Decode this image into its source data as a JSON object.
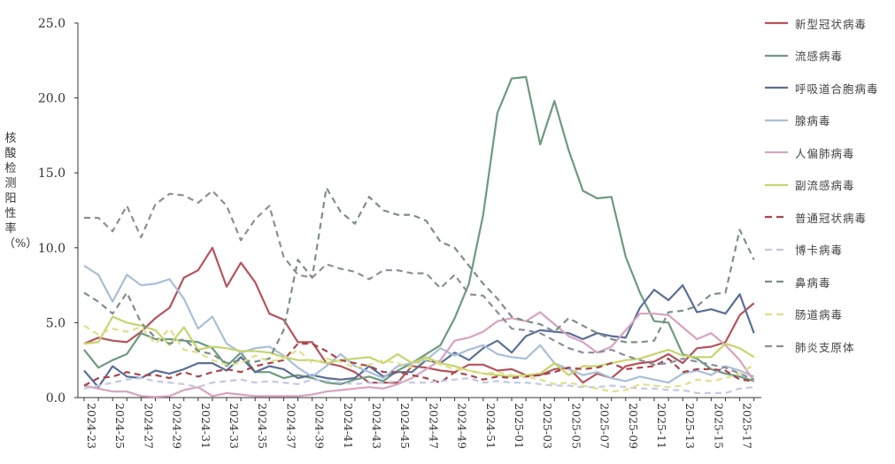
{
  "chart_data": {
    "type": "line",
    "title": "",
    "xlabel": "",
    "ylabel": "核酸检测阳性率（%）",
    "ylim": [
      0,
      25
    ],
    "yticks": [
      "0.0",
      "5.0",
      "10.0",
      "15.0",
      "20.0",
      "25.0"
    ],
    "grid": false,
    "legend_position": "right",
    "x": [
      "2024-23",
      "2024-24",
      "2024-25",
      "2024-26",
      "2024-27",
      "2024-28",
      "2024-29",
      "2024-30",
      "2024-31",
      "2024-32",
      "2024-33",
      "2024-34",
      "2024-35",
      "2024-36",
      "2024-37",
      "2024-38",
      "2024-39",
      "2024-40",
      "2024-41",
      "2024-42",
      "2024-43",
      "2024-44",
      "2024-45",
      "2024-46",
      "2024-47",
      "2024-48",
      "2024-49",
      "2024-50",
      "2024-51",
      "2024-52",
      "2025-01",
      "2025-02",
      "2025-03",
      "2025-04",
      "2025-05",
      "2025-06",
      "2025-07",
      "2025-08",
      "2025-09",
      "2025-10",
      "2025-11",
      "2025-12",
      "2025-13",
      "2025-14",
      "2025-15",
      "2025-16",
      "2025-17",
      "2025-18"
    ],
    "x_tick_labels": [
      "2024-23",
      "2024-25",
      "2024-27",
      "2024-29",
      "2024-31",
      "2024-33",
      "2024-35",
      "2024-37",
      "2024-39",
      "2024-41",
      "2024-43",
      "2024-45",
      "2024-47",
      "2024-49",
      "2024-51",
      "2025-01",
      "2025-03",
      "2025-05",
      "2025-07",
      "2025-09",
      "2025-11",
      "2025-13",
      "2025-15",
      "2025-17"
    ],
    "series": [
      {
        "name": "新型冠状病毒",
        "color": "#b5545c",
        "dash": false,
        "values": [
          3.6,
          4.0,
          3.8,
          3.7,
          4.4,
          5.3,
          6.0,
          8.0,
          8.5,
          10.0,
          7.4,
          9.0,
          7.7,
          5.6,
          5.2,
          3.7,
          3.7,
          2.3,
          2.1,
          1.7,
          1.0,
          1.0,
          1.0,
          2.1,
          2.0,
          1.8,
          1.7,
          2.2,
          2.2,
          1.8,
          1.9,
          1.5,
          1.5,
          1.9,
          2.0,
          1.0,
          1.6,
          1.3,
          2.1,
          2.3,
          2.4,
          2.9,
          2.3,
          3.3,
          3.4,
          3.7,
          5.5,
          6.3
        ]
      },
      {
        "name": "流感病毒",
        "color": "#6e9a80",
        "dash": false,
        "values": [
          3.2,
          2.0,
          2.5,
          2.9,
          4.3,
          3.9,
          3.9,
          3.8,
          3.7,
          3.3,
          2.1,
          3.0,
          1.7,
          1.7,
          1.3,
          1.5,
          1.3,
          1.0,
          0.9,
          1.2,
          1.4,
          1.1,
          1.8,
          2.3,
          2.9,
          3.5,
          5.3,
          7.6,
          12.2,
          19.0,
          21.3,
          21.4,
          16.9,
          19.8,
          16.5,
          13.8,
          13.3,
          13.4,
          9.4,
          7.0,
          5.1,
          5.0,
          2.9,
          2.6,
          1.9,
          1.6,
          1.4,
          1.1
        ]
      },
      {
        "name": "呼吸道合胞病毒",
        "color": "#5a6f96",
        "dash": false,
        "values": [
          1.8,
          0.7,
          2.1,
          1.4,
          1.3,
          1.8,
          1.6,
          1.9,
          2.3,
          2.3,
          1.8,
          2.7,
          1.7,
          2.1,
          1.9,
          1.3,
          1.5,
          1.3,
          1.2,
          1.3,
          2.1,
          1.4,
          1.7,
          1.7,
          2.5,
          2.3,
          3.0,
          2.5,
          3.3,
          3.8,
          3.0,
          4.1,
          4.5,
          4.4,
          4.3,
          3.9,
          4.3,
          4.1,
          4.0,
          6.0,
          7.2,
          6.5,
          7.5,
          5.7,
          5.9,
          5.6,
          6.9,
          4.3
        ]
      },
      {
        "name": "腺病毒",
        "color": "#a9bfd8",
        "dash": false,
        "values": [
          8.8,
          8.2,
          6.4,
          8.2,
          7.5,
          7.6,
          7.9,
          6.6,
          4.6,
          5.4,
          3.6,
          3.0,
          3.3,
          3.4,
          2.8,
          2.0,
          1.4,
          2.1,
          2.9,
          2.1,
          1.7,
          1.3,
          2.1,
          2.3,
          2.5,
          3.3,
          2.8,
          3.2,
          3.5,
          2.9,
          2.7,
          2.6,
          3.5,
          2.3,
          1.9,
          1.5,
          1.7,
          1.3,
          1.1,
          1.4,
          1.2,
          1.0,
          1.6,
          1.8,
          1.5,
          2.1,
          1.8,
          1.4
        ]
      },
      {
        "name": "人偏肺病毒",
        "color": "#d7a3bf",
        "dash": false,
        "values": [
          0.8,
          0.6,
          0.4,
          0.4,
          0.1,
          0.05,
          0.1,
          0.5,
          0.7,
          0.1,
          0.3,
          0.2,
          0.1,
          0.1,
          0.1,
          0.1,
          0.2,
          0.4,
          0.5,
          0.6,
          0.7,
          0.6,
          0.9,
          1.3,
          1.9,
          2.5,
          3.8,
          4.0,
          4.4,
          5.1,
          5.3,
          5.1,
          5.7,
          4.9,
          4.1,
          3.7,
          3.0,
          3.4,
          4.5,
          5.6,
          5.6,
          5.5,
          4.7,
          3.9,
          4.3,
          3.5,
          2.5,
          1.1
        ]
      },
      {
        "name": "副流感病毒",
        "color": "#c6d46e",
        "dash": false,
        "values": [
          3.6,
          3.7,
          5.4,
          5.0,
          4.8,
          4.5,
          3.5,
          4.7,
          3.2,
          3.4,
          3.3,
          3.1,
          3.1,
          3.0,
          2.7,
          2.5,
          2.5,
          2.3,
          2.5,
          2.6,
          2.7,
          2.3,
          2.9,
          2.3,
          2.7,
          2.3,
          2.1,
          1.8,
          1.6,
          1.5,
          1.4,
          1.5,
          1.6,
          2.3,
          1.5,
          2.1,
          2.1,
          2.3,
          2.5,
          2.6,
          2.9,
          3.2,
          2.8,
          2.7,
          2.7,
          3.6,
          3.3,
          2.7
        ]
      },
      {
        "name": "普通冠状病毒",
        "color": "#a8454f",
        "dash": true,
        "values": [
          0.8,
          1.3,
          1.4,
          1.7,
          1.5,
          1.5,
          1.3,
          1.7,
          1.4,
          1.7,
          1.9,
          1.7,
          2.1,
          2.3,
          2.5,
          3.6,
          3.6,
          3.1,
          2.5,
          2.3,
          2.1,
          1.7,
          1.7,
          1.5,
          1.3,
          1.0,
          1.7,
          1.5,
          1.2,
          1.4,
          1.3,
          1.4,
          1.5,
          1.7,
          2.0,
          1.9,
          2.0,
          2.3,
          1.9,
          2.0,
          2.1,
          2.6,
          1.7,
          1.9,
          1.9,
          1.8,
          1.2,
          1.1
        ]
      },
      {
        "name": "博卡病毒",
        "color": "#c3c9e2",
        "dash": true,
        "values": [
          0.6,
          0.8,
          1.0,
          1.2,
          1.3,
          1.1,
          1.0,
          0.9,
          0.7,
          1.0,
          1.1,
          1.2,
          1.0,
          1.1,
          1.0,
          0.9,
          1.2,
          1.1,
          1.0,
          0.9,
          1.0,
          1.0,
          1.1,
          1.0,
          1.0,
          1.1,
          1.2,
          1.3,
          1.0,
          1.1,
          1.0,
          1.0,
          0.9,
          0.8,
          0.8,
          0.7,
          0.7,
          0.8,
          0.7,
          0.6,
          0.6,
          0.5,
          0.5,
          0.3,
          0.3,
          0.3,
          0.6,
          0.7
        ]
      },
      {
        "name": "鼻病毒",
        "color": "#7c8f88",
        "dash": true,
        "values": [
          7.0,
          6.4,
          5.6,
          7.0,
          5.0,
          4.0,
          3.6,
          3.9,
          3.1,
          2.9,
          2.3,
          2.5,
          2.4,
          2.6,
          4.5,
          9.2,
          8.0,
          14.0,
          12.4,
          11.6,
          13.4,
          12.5,
          12.2,
          12.2,
          11.8,
          10.4,
          10.0,
          8.8,
          7.6,
          6.6,
          5.4,
          5.1,
          4.9,
          4.4,
          5.3,
          4.8,
          4.3,
          3.9,
          3.7,
          3.7,
          3.8,
          5.7,
          5.8,
          6.1,
          6.9,
          7.0,
          11.2,
          9.2
        ]
      },
      {
        "name": "肠道病毒",
        "color": "#dfe08a",
        "dash": true,
        "values": [
          4.8,
          4.2,
          4.6,
          4.4,
          4.7,
          3.6,
          4.6,
          3.2,
          3.0,
          2.5,
          2.2,
          2.3,
          2.8,
          2.4,
          2.6,
          3.2,
          2.3,
          2.6,
          2.4,
          2.0,
          2.2,
          2.5,
          2.3,
          2.0,
          2.6,
          2.2,
          1.9,
          1.8,
          1.6,
          1.7,
          1.5,
          1.4,
          1.2,
          0.9,
          1.0,
          0.8,
          0.6,
          0.4,
          0.5,
          0.9,
          0.8,
          0.7,
          0.8,
          1.2,
          1.1,
          1.3,
          1.6,
          2.2
        ]
      },
      {
        "name": "肺炎支原体",
        "color": "#8c8f99",
        "dash": true,
        "values": [
          12.0,
          12.0,
          11.1,
          12.8,
          10.7,
          12.9,
          13.6,
          13.5,
          13.0,
          13.8,
          12.8,
          10.5,
          11.9,
          12.8,
          9.4,
          8.2,
          8.0,
          8.9,
          8.6,
          8.4,
          7.9,
          8.5,
          8.5,
          8.3,
          8.3,
          7.3,
          8.2,
          6.9,
          6.8,
          5.7,
          4.6,
          4.5,
          4.3,
          3.8,
          3.3,
          3.0,
          3.0,
          3.2,
          2.8,
          2.5,
          2.2,
          2.3,
          2.6,
          2.4,
          2.2,
          2.0,
          1.6,
          1.2
        ]
      }
    ]
  }
}
